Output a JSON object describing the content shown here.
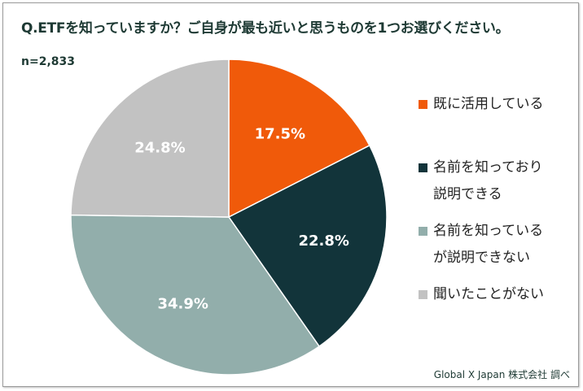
{
  "chart_data": {
    "type": "pie",
    "title": "Q.ETFを知っていますか？ご自身が最も近いと思うものを1つお選びください。",
    "sample_size": "n=2,833",
    "slices": [
      {
        "label": "既に活用している",
        "legend_lines": [
          "既に活用している"
        ],
        "value": 17.5,
        "display": "17.5%",
        "color": "#f05a0a"
      },
      {
        "label": "名前を知っており説明できる",
        "legend_lines": [
          "名前を知っており",
          "説明できる"
        ],
        "value": 22.8,
        "display": "22.8%",
        "color": "#12343a"
      },
      {
        "label": "名前を知っているが説明できない",
        "legend_lines": [
          "名前を知っている",
          "が説明できない"
        ],
        "value": 34.9,
        "display": "34.9%",
        "color": "#92aeab"
      },
      {
        "label": "聞いたことがない",
        "legend_lines": [
          "聞いたことがない"
        ],
        "value": 24.8,
        "display": "24.8%",
        "color": "#c2c2c2"
      }
    ],
    "start_angle": "12 o'clock",
    "direction": "clockwise",
    "legend_position": "right"
  },
  "source": "Global X Japan 株式会社 調べ"
}
